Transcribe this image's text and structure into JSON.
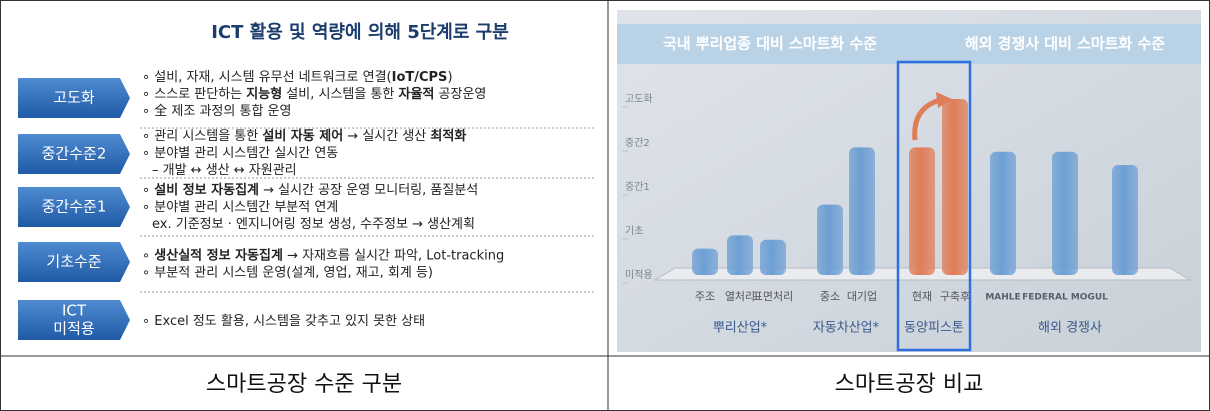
{
  "left": {
    "title": "ICT 활용 및 역량에 의해 5단계로 구분",
    "levels": [
      {
        "label": [
          "고도화"
        ],
        "lines": [
          [
            "∘ ",
            "설비, 자재, 시스템 유무선 네트워크로 연결(",
            {
              "text": "IoT/CPS",
              "bold": true
            },
            ")"
          ],
          [
            "∘ ",
            "스스로 판단하는 ",
            {
              "text": "지능형",
              "bold": true
            },
            " 설비, 시스템을 통한 ",
            {
              "text": "자율적",
              "bold": true
            },
            " 공장운영"
          ],
          [
            "∘ ",
            "全 제조 과정의 통합 운영"
          ]
        ]
      },
      {
        "label": [
          "중간수준2"
        ],
        "lines": [
          [
            "∘ ",
            "관리 시스템을 통한 ",
            {
              "text": "설비 자동 제어",
              "bold": true
            },
            " → 실시간 생산 ",
            {
              "text": "최적화",
              "bold": true
            }
          ],
          [
            "∘ ",
            "분야별 관리 시스템간 실시간 연동"
          ],
          [
            "– 개발 ↔ 생산 ↔ 자원관리"
          ]
        ]
      },
      {
        "label": [
          "중간수준1"
        ],
        "lines": [
          [
            "∘ ",
            {
              "text": "설비 정보 자동집계",
              "bold": true
            },
            " → 실시간 공장 운영 모니터링, 품질분석"
          ],
          [
            "∘ ",
            "분야별 관리 시스템간 부분적 연계"
          ],
          [
            "ex. 기준정보 · 엔지니어링 정보 생성, 수주정보 → 생산계획"
          ]
        ]
      },
      {
        "label": [
          "기초수준"
        ],
        "lines": [
          [
            "∘ ",
            {
              "text": "생산실적 정보 자동집계",
              "bold": true
            },
            " → 자재흐름 실시간 파악, Lot-tracking"
          ],
          [
            "∘ ",
            "부분적 관리 시스템 운영(설계, 영업, 재고, 회계 등)"
          ]
        ]
      },
      {
        "label": [
          "ICT",
          "미적용"
        ],
        "lines": [
          [
            "∘ ",
            "Excel 정도 활용, 시스템을 갖추고 있지 못한 상태"
          ]
        ]
      }
    ],
    "caption": "스마트공장 수준 구분"
  },
  "chart_data": {
    "type": "bar",
    "headers": [
      "국내 뿌리업종 대비 스마트화 수준",
      "해외 경쟁사 대비 스마트화 수준"
    ],
    "categories": [
      "주조",
      "열처리",
      "표면처리",
      "중소",
      "대기업",
      "현재",
      "구축후",
      "MAHLE",
      "FEDERAL MOGUL",
      null
    ],
    "values": [
      0.6,
      0.9,
      0.8,
      1.6,
      2.9,
      2.9,
      4.0,
      2.8,
      2.8,
      2.5
    ],
    "colors": [
      "#6d9fd4",
      "#6d9fd4",
      "#6d9fd4",
      "#6d9fd4",
      "#6d9fd4",
      "#df7d58",
      "#df7d58",
      "#6d9fd4",
      "#6d9fd4",
      "#6d9fd4"
    ],
    "groups": [
      "뿌리산업*",
      "자동차산업*",
      "동양피스톤",
      "해외 경쟁사"
    ],
    "ylim": [
      0,
      4
    ],
    "yticks": [
      {
        "value": 0,
        "label": "미적용"
      },
      {
        "value": 1,
        "label": "기초"
      },
      {
        "value": 2,
        "label": "중간1"
      },
      {
        "value": 3,
        "label": "중간2"
      },
      {
        "value": 4,
        "label": "고도화"
      }
    ],
    "caption": "스마트공장 비교"
  }
}
